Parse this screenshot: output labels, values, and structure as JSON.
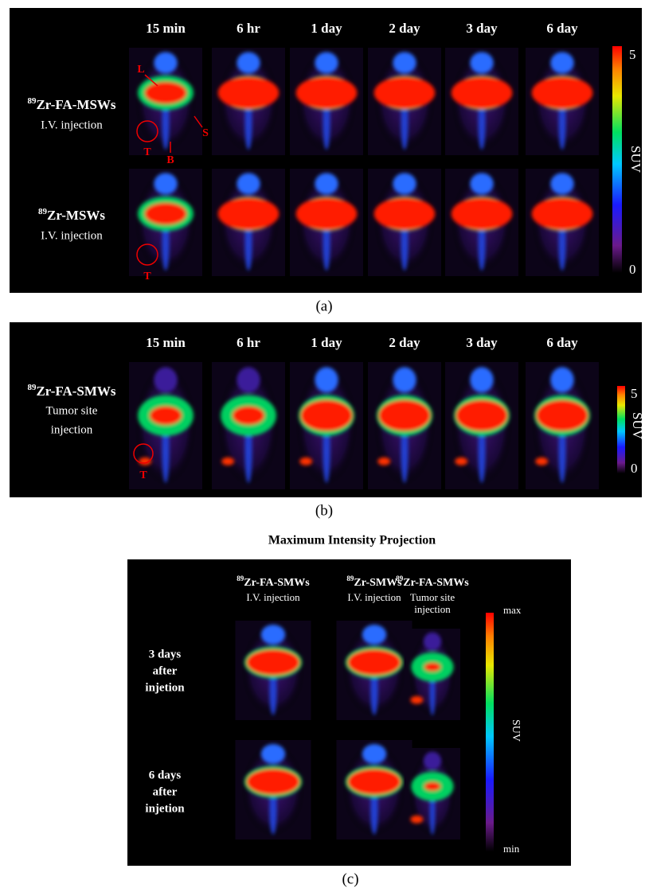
{
  "panel_a": {
    "time_labels": [
      "15 min",
      "6 hr",
      "1 day",
      "2 day",
      "3 day",
      "6 day"
    ],
    "rows": [
      {
        "superscript": "89",
        "name": "Zr-FA-MSWs",
        "route": "I.V. injection"
      },
      {
        "superscript": "89",
        "name": "Zr-MSWs",
        "route": "I.V. injection"
      }
    ],
    "annotations": {
      "liver": "L",
      "spleen": "S",
      "tumor": "T",
      "bladder": "B",
      "tumor_row2": "T"
    },
    "colorbar": {
      "max": "5",
      "min": "0",
      "label": "SUV"
    },
    "caption": "(a)"
  },
  "panel_b": {
    "time_labels": [
      "15 min",
      "6 hr",
      "1 day",
      "2 day",
      "3 day",
      "6 day"
    ],
    "row": {
      "superscript": "89",
      "name": "Zr-FA-SMWs",
      "route_line1": "Tumor site",
      "route_line2": "injection"
    },
    "annotations": {
      "tumor": "T"
    },
    "colorbar": {
      "max": "5",
      "min": "0",
      "label": "SUV"
    },
    "caption": "(b)"
  },
  "panel_c": {
    "title": "Maximum Intensity Projection",
    "columns": [
      {
        "superscript": "89",
        "name": "Zr-FA-SMWs",
        "route": [
          "I.V. injection"
        ]
      },
      {
        "superscript": "89",
        "name": "Zr-SMWs",
        "route": [
          "I.V. injection"
        ]
      },
      {
        "superscript": "89",
        "name": "Zr-FA-SMWs",
        "route": [
          "Tumor site",
          "injection"
        ]
      }
    ],
    "rows": [
      [
        "3 days",
        "after",
        "injetion"
      ],
      [
        "6 days",
        "after",
        "injetion"
      ]
    ],
    "colorbar": {
      "max": "max",
      "min": "min",
      "label": "SUV"
    },
    "caption": "(c)"
  }
}
